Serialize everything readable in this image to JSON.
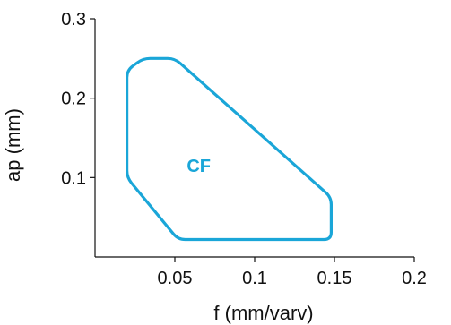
{
  "chart_data": {
    "type": "area",
    "title": "",
    "xlabel": "f (mm/varv)",
    "ylabel": "ap (mm)",
    "xlim": [
      0,
      0.2
    ],
    "ylim": [
      0,
      0.3
    ],
    "x_ticks": [
      {
        "value": 0.05,
        "label": "0.05"
      },
      {
        "value": 0.1,
        "label": "0.1"
      },
      {
        "value": 0.15,
        "label": "0.15"
      },
      {
        "value": 0.2,
        "label": "0.2"
      }
    ],
    "y_ticks": [
      {
        "value": 0.1,
        "label": "0.1"
      },
      {
        "value": 0.2,
        "label": "0.2"
      },
      {
        "value": 0.3,
        "label": "0.3"
      }
    ],
    "grid": false,
    "series": [
      {
        "name": "CF",
        "color": "#1aa6d8",
        "closed": true,
        "x": [
          0.03,
          0.05,
          0.148,
          0.148,
          0.052,
          0.02,
          0.02
        ],
        "y": [
          0.25,
          0.25,
          0.075,
          0.022,
          0.022,
          0.1,
          0.235
        ]
      }
    ],
    "annotations": [
      {
        "text": "CF",
        "x": 0.065,
        "y": 0.115,
        "color": "#1aa6d8"
      }
    ]
  }
}
